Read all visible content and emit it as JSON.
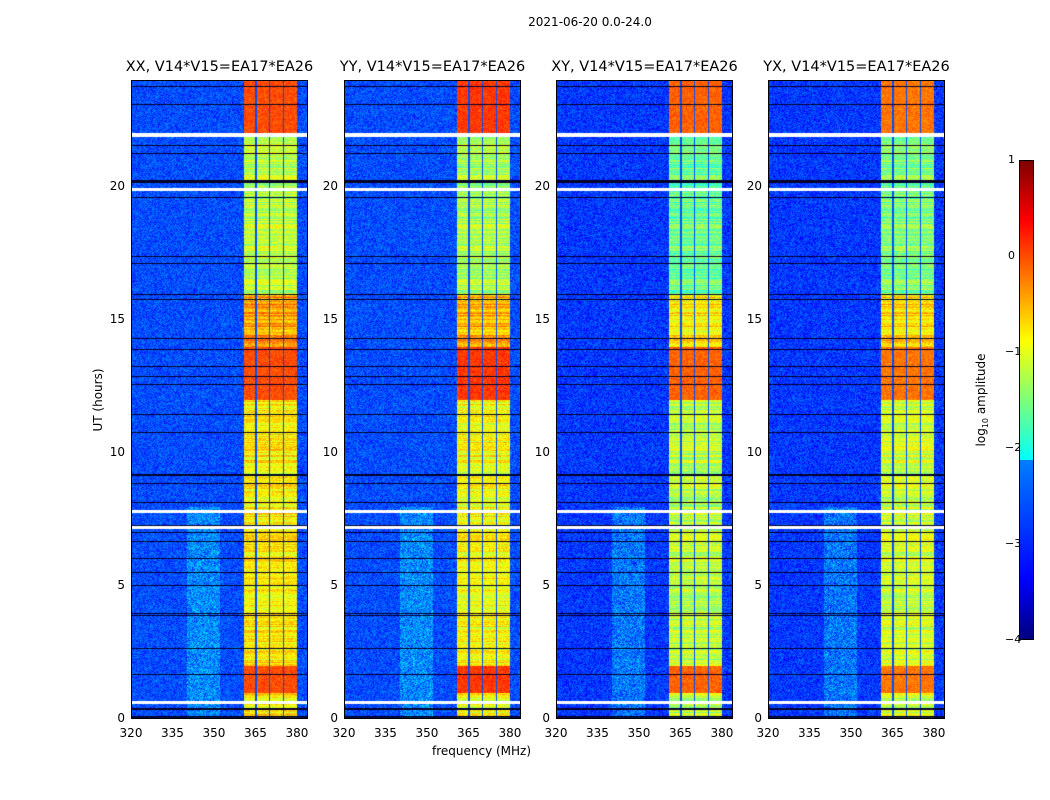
{
  "suptitle": "2021-06-20 0.0-24.0",
  "chart_data": {
    "type": "heatmap",
    "title": "2021-06-20 0.0-24.0",
    "xlabel": "frequency (MHz)",
    "ylabel": "UT (hours)",
    "xlim": [
      320,
      384
    ],
    "ylim": [
      0,
      24
    ],
    "xticks": [
      "320",
      "335",
      "350",
      "365",
      "380"
    ],
    "xtick_values": [
      320,
      335,
      350,
      365,
      380
    ],
    "yticks": [
      "0",
      "5",
      "10",
      "15",
      "20"
    ],
    "ytick_values": [
      0,
      5,
      10,
      15,
      20
    ],
    "colorbar": {
      "label_prefix": "log",
      "label_sub": "10",
      "label_suffix": " amplitude",
      "range": [
        -4,
        1
      ],
      "ticks": [
        "1",
        "0",
        "−1",
        "−2",
        "−3",
        "−4"
      ],
      "tick_values": [
        1,
        0,
        -1,
        -2,
        -3,
        -4
      ],
      "colormap": "jet"
    },
    "panels": [
      {
        "title": "XX, V14*V15=EA17*EA26",
        "background_level": -3.0,
        "band_level": -0.8,
        "peak_level": 0.1
      },
      {
        "title": "YY, V14*V15=EA17*EA26",
        "background_level": -3.0,
        "band_level": -0.9,
        "peak_level": 0.2
      },
      {
        "title": "XY, V14*V15=EA17*EA26",
        "background_level": -3.1,
        "band_level": -1.2,
        "peak_level": 0.0
      },
      {
        "title": "YX, V14*V15=EA17*EA26",
        "background_level": -3.1,
        "band_level": -1.1,
        "peak_level": -0.1
      }
    ],
    "band_mhz": [
      360.5,
      380
    ],
    "subband_edges_mhz": [
      365,
      370,
      375
    ],
    "bright_periods_hours": [
      [
        1.0,
        2.0
      ],
      [
        12.0,
        14.0
      ],
      [
        22.0,
        24.0
      ]
    ],
    "flagged_times_hours": [
      0.65,
      7.2,
      7.8,
      19.9,
      21.95
    ]
  }
}
